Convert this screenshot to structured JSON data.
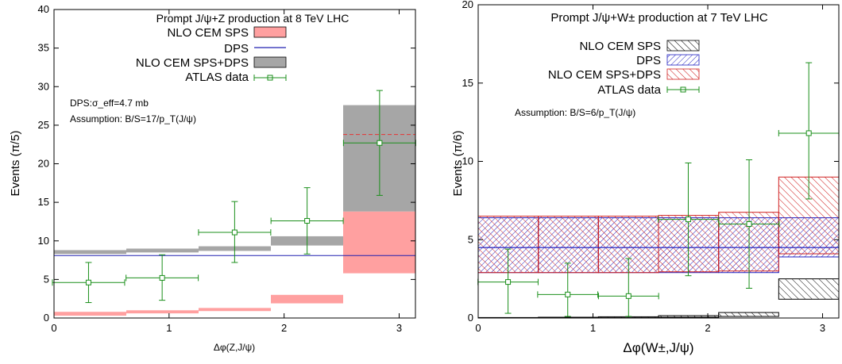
{
  "chart_data": [
    {
      "type": "bar",
      "title": "Prompt J/ψ+Z production at 8 TeV LHC",
      "xlabel": "Δφ(Z,J/ψ)",
      "ylabel": "Events (π/5)",
      "xlim": [
        0,
        3.1416
      ],
      "ylim": [
        0,
        40
      ],
      "xticks": [
        "0",
        "1",
        "2",
        "3"
      ],
      "yticks": [
        "0",
        "5",
        "10",
        "15",
        "20",
        "25",
        "30",
        "35",
        "40"
      ],
      "bin_edges": [
        0,
        0.6283,
        1.2566,
        1.885,
        2.5133,
        3.1416
      ],
      "notes": [
        "DPS:σ_eff=4.7 mb",
        "Assumption: B/S=17/p_T(J/ψ)"
      ],
      "legend_position": "top-right",
      "legend": [
        "NLO CEM SPS",
        "DPS",
        "NLO CEM SPS+DPS",
        "ATLAS data"
      ],
      "colors": {
        "sps": "#ffa0a0",
        "dps": "#2020b0",
        "sum": "#a6a6a6",
        "data": "#1b8f1b",
        "spsline": "#e04040"
      },
      "series": [
        {
          "name": "NLO CEM SPS",
          "low": [
            0.3,
            0.6,
            0.9,
            1.9,
            5.8
          ],
          "high": [
            0.8,
            1.0,
            1.3,
            3.0,
            13.8
          ],
          "central": [
            0.5,
            0.8,
            1.1,
            2.4,
            9.9
          ]
        },
        {
          "name": "DPS",
          "values": [
            8.1,
            8.1,
            8.1,
            8.1,
            8.1
          ]
        },
        {
          "name": "NLO CEM SPS+DPS",
          "low": [
            8.3,
            8.5,
            8.7,
            9.4,
            13.8
          ],
          "high": [
            8.8,
            9.0,
            9.3,
            10.6,
            27.6
          ]
        },
        {
          "name": "ATLAS data",
          "x": [
            0.3,
            0.94,
            1.57,
            2.2,
            2.83
          ],
          "y": [
            4.6,
            5.2,
            11.1,
            12.6,
            22.7
          ],
          "yerr_low": [
            2.6,
            2.9,
            3.9,
            4.3,
            6.8
          ],
          "yerr_high": [
            2.6,
            3.0,
            4.0,
            4.3,
            6.8
          ],
          "xerr": [
            0.314,
            0.314,
            0.314,
            0.314,
            0.314
          ]
        }
      ]
    },
    {
      "type": "bar",
      "title": "Prompt J/ψ+W± production at 7 TeV LHC",
      "xlabel": "Δφ(W±,J/ψ)",
      "ylabel": "Events (π/6)",
      "xlim": [
        0,
        3.1416
      ],
      "ylim": [
        0,
        20
      ],
      "xticks": [
        "0",
        "1",
        "2",
        "3"
      ],
      "yticks": [
        "0",
        "5",
        "10",
        "15",
        "20"
      ],
      "bin_edges": [
        0,
        0.5236,
        1.0472,
        1.5708,
        2.0944,
        2.618,
        3.1416
      ],
      "notes": [
        "Assumption: B/S=6/p_T(J/ψ)"
      ],
      "legend_position": "top-right",
      "legend": [
        "NLO CEM SPS",
        "DPS",
        "NLO CEM SPS+DPS",
        "ATLAS data"
      ],
      "colors": {
        "sps": "#000000",
        "dps": "#2020c0",
        "sum": "#d02020",
        "data": "#1b8f1b"
      },
      "series": [
        {
          "name": "NLO CEM SPS",
          "low": [
            0.0,
            0.0,
            0.02,
            0.05,
            0.1,
            1.2
          ],
          "high": [
            0.03,
            0.05,
            0.08,
            0.15,
            0.35,
            2.5
          ]
        },
        {
          "name": "DPS",
          "low": [
            2.9,
            2.9,
            2.9,
            2.9,
            2.9,
            3.9
          ],
          "high": [
            6.4,
            6.4,
            6.4,
            6.4,
            6.4,
            6.4
          ],
          "central": [
            4.5,
            4.5,
            4.5,
            4.5,
            4.5,
            4.5
          ]
        },
        {
          "name": "NLO CEM SPS+DPS",
          "low": [
            2.9,
            2.9,
            2.9,
            2.95,
            3.0,
            4.1
          ],
          "high": [
            6.5,
            6.5,
            6.5,
            6.55,
            6.75,
            9.0
          ]
        },
        {
          "name": "ATLAS data",
          "x": [
            0.26,
            0.78,
            1.31,
            1.83,
            2.36,
            2.88
          ],
          "y": [
            2.3,
            1.5,
            1.4,
            6.3,
            6.0,
            11.8
          ],
          "yerr_low": [
            2.0,
            1.4,
            1.3,
            3.6,
            4.1,
            4.2
          ],
          "yerr_high": [
            2.1,
            2.0,
            2.4,
            3.6,
            4.1,
            4.5
          ],
          "xerr": [
            0.262,
            0.262,
            0.262,
            0.262,
            0.262,
            0.262
          ]
        }
      ]
    }
  ]
}
